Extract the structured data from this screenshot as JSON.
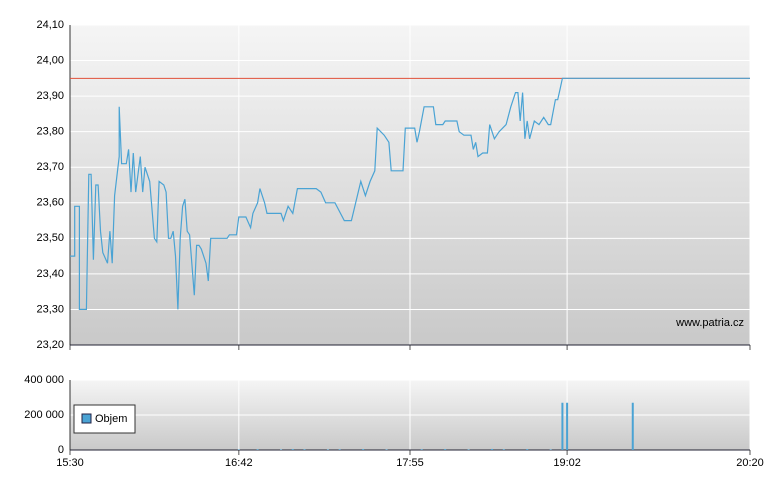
{
  "chart_data": [
    {
      "type": "line",
      "color": "#4aa3d4",
      "annotation": "www.patria.cz",
      "reference_line": {
        "value": 23.95,
        "color": "#e0503a"
      },
      "xlim": [
        "15:30",
        "20:20"
      ],
      "ylim": [
        23.2,
        24.1
      ],
      "yticks": [
        {
          "value": 23.2,
          "label": "23,20"
        },
        {
          "value": 23.3,
          "label": "23,30"
        },
        {
          "value": 23.4,
          "label": "23,40"
        },
        {
          "value": 23.5,
          "label": "23,50"
        },
        {
          "value": 23.6,
          "label": "23,60"
        },
        {
          "value": 23.7,
          "label": "23,70"
        },
        {
          "value": 23.8,
          "label": "23,80"
        },
        {
          "value": 23.9,
          "label": "23,90"
        },
        {
          "value": 24.0,
          "label": "24,00"
        },
        {
          "value": 24.1,
          "label": "24,10"
        }
      ],
      "grid": true,
      "x": [
        "15:30",
        "15:32",
        "15:32",
        "15:34",
        "15:34",
        "15:37",
        "15:38",
        "15:39",
        "15:40",
        "15:41",
        "15:42",
        "15:43",
        "15:44",
        "15:46",
        "15:47",
        "15:48",
        "15:49",
        "15:51",
        "15:51",
        "15:52",
        "15:54",
        "15:55",
        "15:56",
        "15:57",
        "15:58",
        "16:00",
        "16:01",
        "16:02",
        "16:04",
        "16:06",
        "16:07",
        "16:08",
        "16:10",
        "16:11",
        "16:12",
        "16:13",
        "16:14",
        "16:15",
        "16:16",
        "16:17",
        "16:18",
        "16:19",
        "16:20",
        "16:21",
        "16:23",
        "16:24",
        "16:25",
        "16:26",
        "16:28",
        "16:29",
        "16:30",
        "16:37",
        "16:38",
        "16:41",
        "16:42",
        "16:45",
        "16:47",
        "16:48",
        "16:50",
        "16:51",
        "16:53",
        "16:54",
        "17:00",
        "17:01",
        "17:03",
        "17:05",
        "17:07",
        "17:10",
        "17:15",
        "17:17",
        "17:19",
        "17:23",
        "17:27",
        "17:30",
        "17:34",
        "17:36",
        "17:38",
        "17:40",
        "17:41",
        "17:44",
        "17:46",
        "17:47",
        "17:49",
        "17:52",
        "17:53",
        "17:57",
        "17:58",
        "17:59",
        "18:01",
        "18:05",
        "18:06",
        "18:09",
        "18:10",
        "18:15",
        "18:16",
        "18:18",
        "18:21",
        "18:22",
        "18:23",
        "18:24",
        "18:26",
        "18:28",
        "18:29",
        "18:31",
        "18:33",
        "18:36",
        "18:38",
        "18:40",
        "18:41",
        "18:42",
        "18:43",
        "18:44",
        "18:45",
        "18:46",
        "18:48",
        "18:50",
        "18:52",
        "18:54",
        "18:55",
        "18:57",
        "18:58",
        "18:59",
        "19:00",
        "19:01",
        "20:20"
      ],
      "values": [
        23.45,
        23.45,
        23.59,
        23.59,
        23.3,
        23.3,
        23.68,
        23.68,
        23.44,
        23.65,
        23.65,
        23.52,
        23.46,
        23.43,
        23.52,
        23.43,
        23.62,
        23.73,
        23.87,
        23.71,
        23.71,
        23.75,
        23.63,
        23.74,
        23.63,
        23.73,
        23.63,
        23.7,
        23.66,
        23.5,
        23.49,
        23.66,
        23.65,
        23.63,
        23.5,
        23.5,
        23.52,
        23.45,
        23.3,
        23.5,
        23.59,
        23.61,
        23.52,
        23.51,
        23.34,
        23.48,
        23.48,
        23.47,
        23.43,
        23.38,
        23.5,
        23.5,
        23.51,
        23.51,
        23.56,
        23.56,
        23.53,
        23.57,
        23.6,
        23.64,
        23.6,
        23.57,
        23.57,
        23.55,
        23.59,
        23.57,
        23.64,
        23.64,
        23.64,
        23.63,
        23.6,
        23.6,
        23.55,
        23.55,
        23.66,
        23.62,
        23.66,
        23.69,
        23.81,
        23.79,
        23.77,
        23.69,
        23.69,
        23.69,
        23.81,
        23.81,
        23.77,
        23.8,
        23.87,
        23.87,
        23.82,
        23.82,
        23.83,
        23.83,
        23.8,
        23.79,
        23.79,
        23.75,
        23.77,
        23.73,
        23.74,
        23.74,
        23.82,
        23.78,
        23.8,
        23.82,
        23.87,
        23.91,
        23.91,
        23.83,
        23.91,
        23.78,
        23.83,
        23.78,
        23.83,
        23.82,
        23.84,
        23.82,
        23.82,
        23.89,
        23.89,
        23.92,
        23.95,
        23.95,
        23.95
      ]
    },
    {
      "type": "bar",
      "xlim": [
        "15:30",
        "20:20"
      ],
      "xticks": [
        "15:30",
        "16:42",
        "17:55",
        "19:02",
        "20:20"
      ],
      "ylim": [
        0,
        400000
      ],
      "yticks": [
        0,
        {
          "value": 200000,
          "label": "200 000"
        },
        {
          "value": 400000,
          "label": "400 000"
        }
      ],
      "grid": true,
      "legend": "top-left",
      "x": [
        "16:42",
        "16:50",
        "17:00",
        "17:05",
        "17:10",
        "17:20",
        "17:25",
        "17:35",
        "17:45",
        "18:00",
        "18:10",
        "18:20",
        "18:30",
        "18:35",
        "18:45",
        "18:55",
        "19:00",
        "19:02",
        "19:30"
      ],
      "series": [
        {
          "name": "Objem",
          "color": "#4aa3d4",
          "values": [
            3000,
            4000,
            3000,
            5000,
            4000,
            3000,
            4000,
            5000,
            3000,
            4000,
            5000,
            3000,
            6000,
            4000,
            5000,
            3000,
            270000,
            270000,
            270000
          ]
        }
      ]
    }
  ]
}
